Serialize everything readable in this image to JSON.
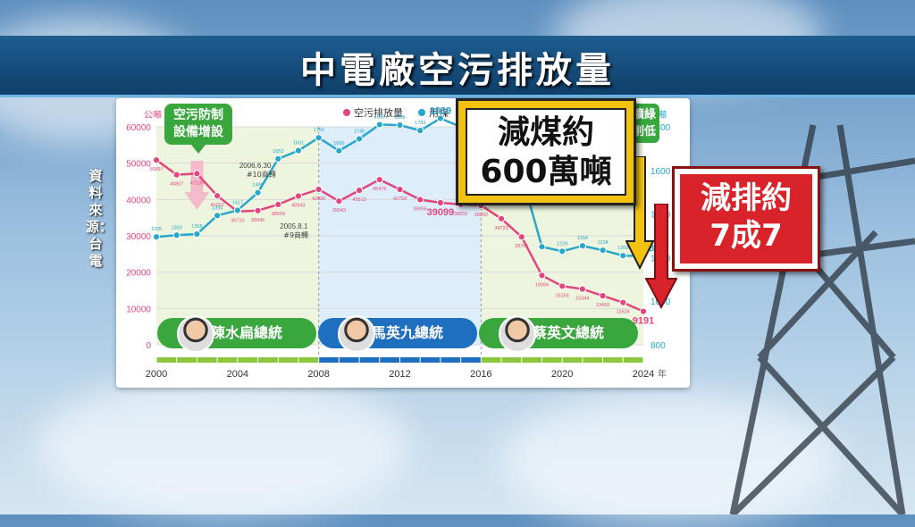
{
  "title": "中電廠空污排放量",
  "source": "資料來源：台電",
  "callouts": {
    "coal_reduction_1": "減煤約",
    "coal_reduction_2": "600萬噸",
    "emission_reduction_1": "減排約",
    "emission_reduction_2": "7成7",
    "pollution_equipment_1": "空污防制",
    "pollution_equipment_2": "設備增設",
    "green_partial_1": "擴綠",
    "green_partial_2": "削低"
  },
  "presidents": [
    {
      "name": "陳水扁總統",
      "color": "#3aa63e"
    },
    {
      "name": "馬英九總統",
      "color": "#1f6fc0"
    },
    {
      "name": "蔡英文總統",
      "color": "#3aa63e"
    }
  ],
  "chart_data": {
    "type": "line",
    "legend": [
      "空污排放量",
      "用煤"
    ],
    "left_axis_unit": "公噸",
    "right_axis_unit": "萬噸",
    "x_unit": "年",
    "x_ticks": [
      "2000",
      "2004",
      "2008",
      "2012",
      "2016",
      "2020",
      "2024"
    ],
    "left_ticks": [
      "0",
      "10000",
      "20000",
      "30000",
      "40000",
      "50000",
      "60000"
    ],
    "right_ticks": [
      "800",
      "1000",
      "1200",
      "1400",
      "1600",
      "1800"
    ],
    "ylim_left": [
      0,
      60000
    ],
    "ylim_right": [
      800,
      1800
    ],
    "x": [
      2000,
      2001,
      2002,
      2003,
      2004,
      2005,
      2006,
      2007,
      2008,
      2009,
      2010,
      2011,
      2012,
      2013,
      2014,
      2015,
      2016,
      2017,
      2018,
      2019,
      2020,
      2021,
      2022,
      2023,
      2024
    ],
    "series": [
      {
        "name": "空污排放量",
        "color": "#e2467f",
        "axis": "left",
        "values": [
          50857,
          46807,
          47135,
          41022,
          36710,
          36945,
          38609,
          40943,
          42800,
          39543,
          42513,
          45476,
          42759,
          39955,
          39099,
          38656,
          38359,
          34723,
          29701,
          19094,
          16154,
          15344,
          13493,
          11624,
          9191
        ],
        "labels": [
          "50857",
          "46807",
          "47135",
          "41022",
          "36710",
          "36945",
          "38609",
          "40943",
          "42800",
          "39543",
          "42513",
          "45476",
          "42759",
          "39955",
          "39099",
          "38656",
          "38359",
          "34723",
          "29701",
          "19094",
          "16154",
          "15344",
          "13493",
          "11624",
          "9191"
        ]
      },
      {
        "name": "用煤",
        "color": "#27a7c9",
        "axis": "right",
        "values": [
          1295,
          1303,
          1308,
          1393,
          1417,
          1498,
          1653,
          1691,
          1750,
          1690,
          1745,
          1810,
          1808,
          1783,
          1839,
          1800,
          1770,
          1700,
          1580,
          1250,
          1229,
          1254,
          1234,
          1209,
          1208
        ],
        "labels": [
          "1295",
          "1303",
          "1308",
          "1393",
          "1417",
          "1498",
          "1653",
          "1691",
          "1750",
          "1690",
          "1745",
          "1810",
          "1808",
          "1783",
          "1839",
          "",
          "",
          "",
          "",
          "",
          "1229",
          "1254",
          "1234",
          "1209",
          "1208"
        ]
      }
    ],
    "annotations": [
      {
        "text_1": "2006.6.30",
        "text_2": "#10商轉"
      },
      {
        "text_1": "2005.8.1",
        "text_2": "#9商轉"
      }
    ]
  }
}
